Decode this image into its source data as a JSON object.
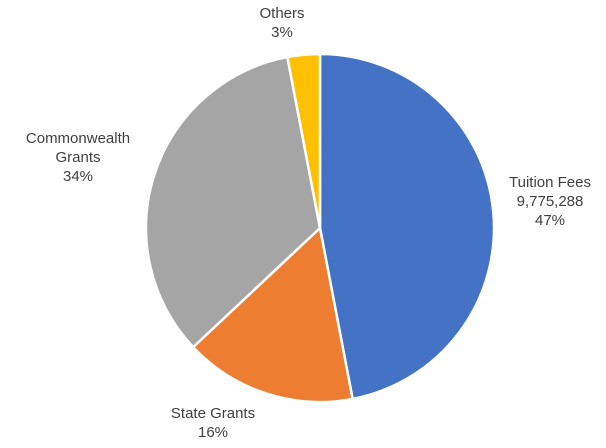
{
  "chart_data": {
    "type": "pie",
    "title": "",
    "start_angle_deg": 0,
    "direction": "clockwise",
    "slices": [
      {
        "label": "Tuition Fees",
        "value": 9775288,
        "value_label": "9,775,288",
        "percent_label": "47%",
        "color": "#4472C4",
        "label_lines": [
          "Tuition Fees"
        ]
      },
      {
        "label": "State Grants",
        "percent": 16,
        "percent_label": "16%",
        "color": "#ED7D31",
        "label_lines": [
          "State Grants"
        ]
      },
      {
        "label": "Commonwealth Grants",
        "percent": 34,
        "percent_label": "34%",
        "color": "#A5A5A5",
        "label_lines": [
          "Commonwealth",
          "Grants"
        ]
      },
      {
        "label": "Others",
        "percent": 3,
        "percent_label": "3%",
        "color": "#FFC000",
        "label_lines": [
          "Others"
        ]
      }
    ]
  }
}
